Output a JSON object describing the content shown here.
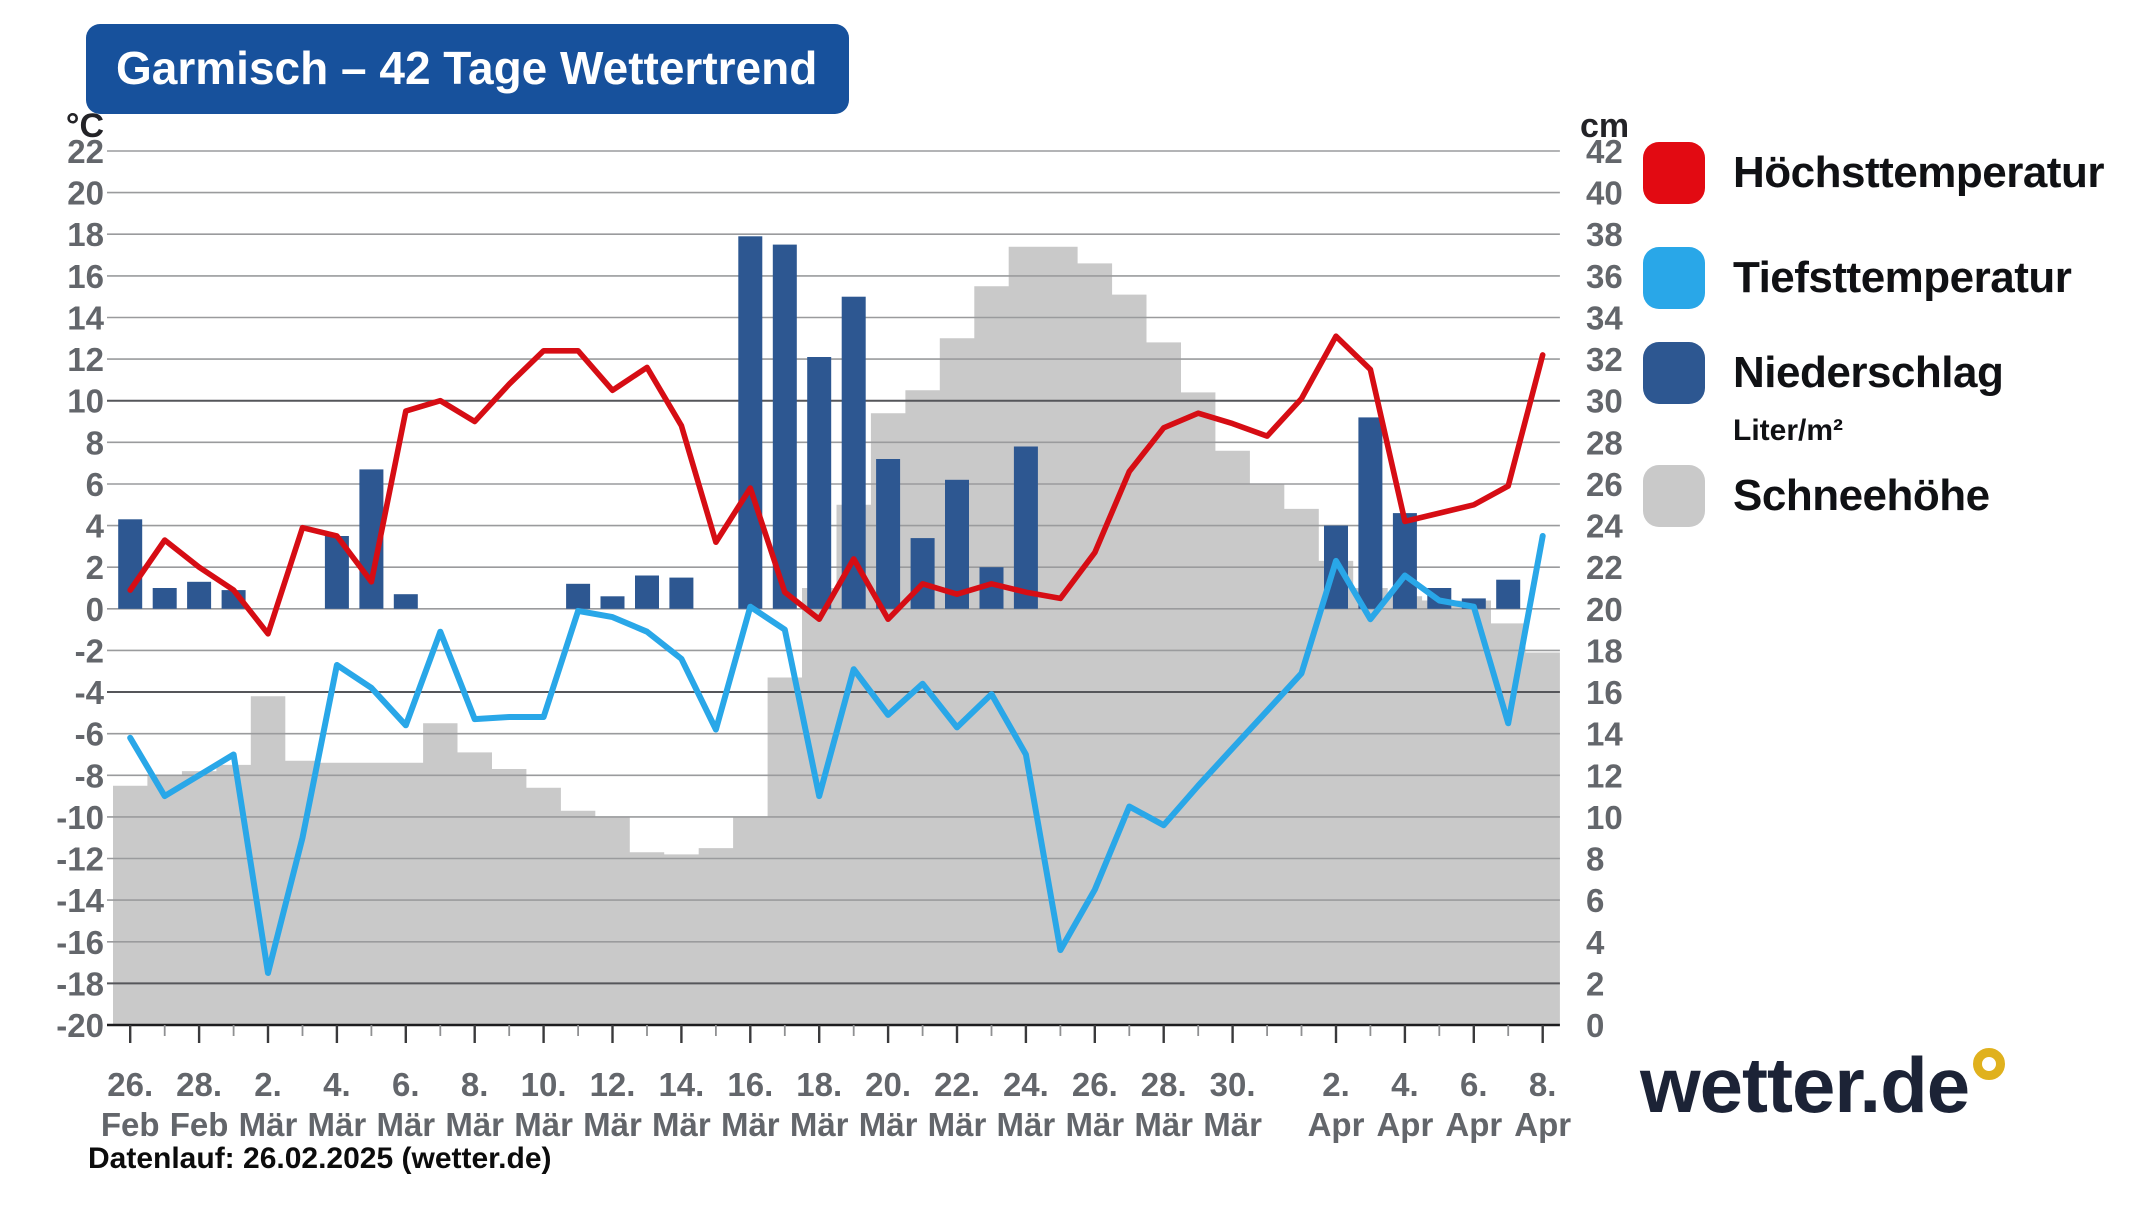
{
  "title": "Garmisch – 42 Tage Wettertrend",
  "footer_note": "Datenlauf: 26.02.2025 (wetter.de)",
  "logo": {
    "text": "wetter.de",
    "ring_color": "#e0b11d"
  },
  "legend": {
    "items": [
      {
        "label": "Höchsttemperatur",
        "color": "#e20a12"
      },
      {
        "label": "Tiefsttemperatur",
        "color": "#29a7e8"
      },
      {
        "label": "Niederschlag",
        "sublabel": "Liter/m²",
        "color": "#2d5791"
      },
      {
        "label": "Schneehöhe",
        "color": "#c9c9c9"
      }
    ]
  },
  "chart_data": {
    "type": "composite",
    "title": "Garmisch – 42 Tage Wettertrend",
    "days": 42,
    "x_axis": {
      "tick_labels": [
        {
          "day": 1,
          "d": "26.",
          "m": "Feb"
        },
        {
          "day": 3,
          "d": "28.",
          "m": "Feb"
        },
        {
          "day": 5,
          "d": "2.",
          "m": "Mär"
        },
        {
          "day": 7,
          "d": "4.",
          "m": "Mär"
        },
        {
          "day": 9,
          "d": "6.",
          "m": "Mär"
        },
        {
          "day": 11,
          "d": "8.",
          "m": "Mär"
        },
        {
          "day": 13,
          "d": "10.",
          "m": "Mär"
        },
        {
          "day": 15,
          "d": "12.",
          "m": "Mär"
        },
        {
          "day": 17,
          "d": "14.",
          "m": "Mär"
        },
        {
          "day": 19,
          "d": "16.",
          "m": "Mär"
        },
        {
          "day": 21,
          "d": "18.",
          "m": "Mär"
        },
        {
          "day": 23,
          "d": "20.",
          "m": "Mär"
        },
        {
          "day": 25,
          "d": "22.",
          "m": "Mär"
        },
        {
          "day": 27,
          "d": "24.",
          "m": "Mär"
        },
        {
          "day": 29,
          "d": "26.",
          "m": "Mär"
        },
        {
          "day": 31,
          "d": "28.",
          "m": "Mär"
        },
        {
          "day": 33,
          "d": "30.",
          "m": "Mär"
        },
        {
          "day": 36,
          "d": "2.",
          "m": "Apr"
        },
        {
          "day": 38,
          "d": "4.",
          "m": "Apr"
        },
        {
          "day": 40,
          "d": "6.",
          "m": "Apr"
        },
        {
          "day": 42,
          "d": "8.",
          "m": "Apr"
        }
      ]
    },
    "y_left": {
      "unit": "°C",
      "min": -20,
      "max": 22,
      "step": 2,
      "dark_lines": [
        10,
        -4,
        -18
      ]
    },
    "y_right": {
      "unit": "cm",
      "min": 0,
      "max": 42,
      "step": 2
    },
    "series": [
      {
        "name": "Höchsttemperatur",
        "type": "line",
        "axis": "left",
        "color": "#d60d14",
        "values": [
          0.9,
          3.3,
          2.0,
          0.9,
          -1.2,
          3.9,
          3.5,
          1.3,
          9.5,
          10.0,
          9.0,
          10.8,
          12.4,
          12.4,
          10.5,
          11.6,
          8.8,
          3.2,
          5.8,
          0.8,
          -0.5,
          2.4,
          -0.5,
          1.2,
          0.7,
          1.2,
          0.8,
          0.5,
          2.7,
          6.6,
          8.7,
          9.4,
          8.9,
          8.3,
          10.1,
          13.1,
          11.5,
          4.2,
          4.6,
          5.0,
          5.9,
          12.2
        ]
      },
      {
        "name": "Tiefsttemperatur",
        "type": "line",
        "axis": "left",
        "color": "#29a7e8",
        "values": [
          -6.2,
          -9.0,
          -8.0,
          -7.0,
          -17.5,
          -11.0,
          -2.7,
          -3.8,
          -5.6,
          -1.1,
          -5.3,
          -5.2,
          -5.2,
          -0.1,
          -0.4,
          -1.1,
          -2.4,
          -5.8,
          0.1,
          -1.0,
          -9.0,
          -2.9,
          -5.1,
          -3.6,
          -5.7,
          -4.1,
          -7.0,
          -16.4,
          -13.5,
          -9.5,
          -10.4,
          -8.5,
          -6.7,
          -4.9,
          -3.1,
          2.3,
          -0.5,
          1.6,
          0.4,
          0.1,
          -5.5,
          3.5
        ]
      },
      {
        "name": "Niederschlag",
        "type": "bar",
        "axis": "left",
        "unit": "Liter/m²",
        "color": "#2d5791",
        "values": [
          4.3,
          1.0,
          1.3,
          0.9,
          0,
          0,
          3.5,
          6.7,
          0.7,
          0,
          0,
          0,
          0,
          1.2,
          0.6,
          1.6,
          1.5,
          0,
          17.9,
          17.5,
          12.1,
          15.0,
          7.2,
          3.4,
          6.2,
          2.0,
          7.8,
          0,
          0,
          0,
          0,
          0,
          0,
          0,
          0,
          4.0,
          9.2,
          4.6,
          1.0,
          0.5,
          1.4,
          0
        ]
      },
      {
        "name": "Schneehöhe",
        "type": "area-steps",
        "axis": "right",
        "unit": "cm",
        "color": "#c9c9c9",
        "values": [
          11.5,
          12.0,
          12.2,
          12.5,
          15.8,
          12.7,
          12.6,
          12.6,
          12.6,
          14.5,
          13.1,
          12.3,
          11.4,
          10.3,
          10.0,
          8.3,
          8.2,
          8.5,
          10.0,
          16.7,
          21.0,
          25.0,
          29.4,
          30.5,
          33.0,
          35.5,
          37.4,
          37.4,
          36.6,
          35.1,
          32.8,
          30.4,
          27.6,
          26.0,
          24.8,
          22.3,
          21.0,
          20.6,
          20.4,
          20.4,
          19.3,
          17.9
        ]
      }
    ]
  }
}
